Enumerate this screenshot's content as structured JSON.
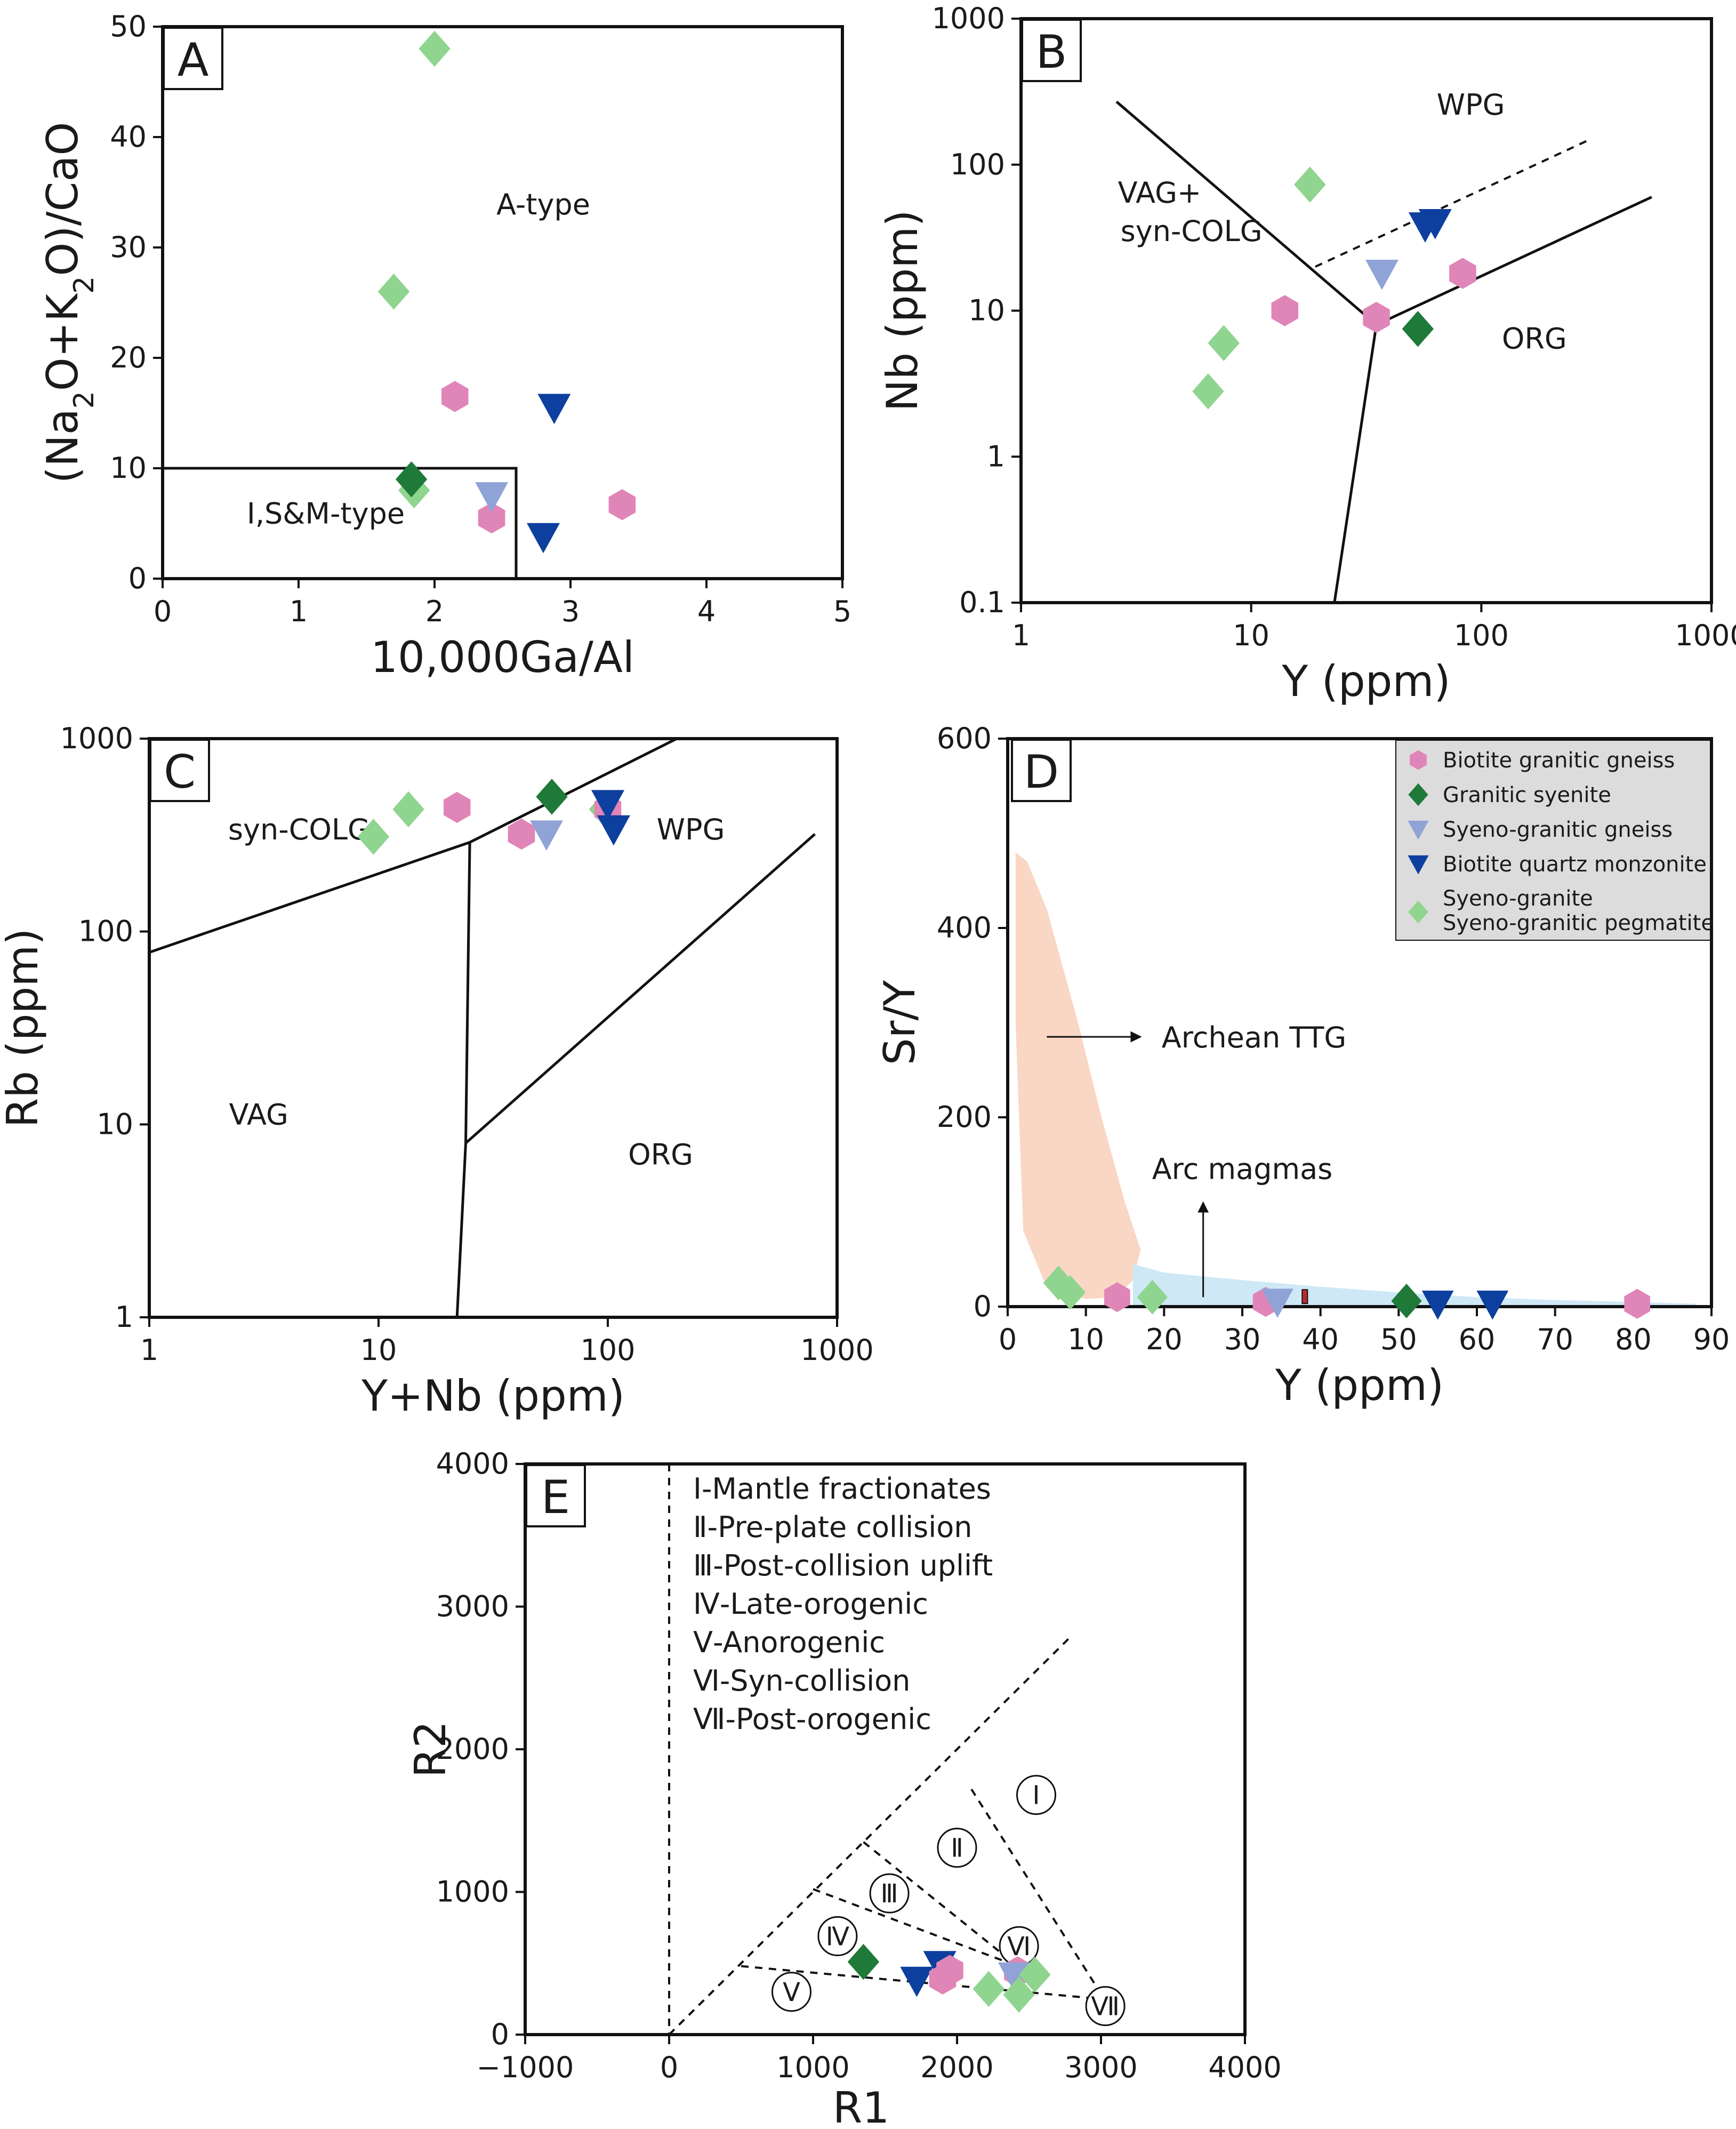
{
  "colors": {
    "biotite_granitic_gneiss": "#e085b8",
    "granitic_syenite": "#1f7a3a",
    "syeno_granitic_gneiss": "#8fa3d6",
    "biotite_quartz_monzonite": "#0d3f9e",
    "syeno_granite": "#8fd48f",
    "ttg_field": "#f9d7c4",
    "arc_field": "#cfe8f6",
    "legend_bg": "#dcdcdc"
  },
  "legend": {
    "items": [
      {
        "key": "biotite_granitic_gneiss",
        "marker": "hexagon",
        "label": "Biotite granitic gneiss"
      },
      {
        "key": "granitic_syenite",
        "marker": "diamond",
        "label": "Granitic syenite"
      },
      {
        "key": "syeno_granitic_gneiss",
        "marker": "triangle-down",
        "label": "Syeno-granitic gneiss"
      },
      {
        "key": "biotite_quartz_monzonite",
        "marker": "triangle-down",
        "label": "Biotite quartz monzonite"
      },
      {
        "key": "syeno_granite",
        "marker": "diamond",
        "label": "Syeno-granite",
        "label2": "Syeno-granitic pegmatite"
      }
    ]
  },
  "chart_data": [
    {
      "panel": "A",
      "type": "scatter",
      "xlabel": "10,000Ga/Al",
      "ylabel_parts": [
        "(Na",
        "2",
        "O+K",
        "2",
        "O)/CaO"
      ],
      "xlim": [
        0,
        5
      ],
      "ylim": [
        0,
        50
      ],
      "xticks": [
        0,
        1,
        2,
        3,
        4,
        5
      ],
      "yticks": [
        0,
        10,
        20,
        30,
        40,
        50
      ],
      "regions": [
        {
          "label": "A-type",
          "x": 2.8,
          "y": 33
        },
        {
          "label": "I,S&M-type",
          "x": 1.2,
          "y": 5
        }
      ],
      "boundaries": [
        [
          [
            0,
            10
          ],
          [
            2.6,
            10
          ],
          [
            2.6,
            0
          ]
        ]
      ],
      "points": [
        {
          "series": "syeno_granite",
          "x": 2.0,
          "y": 48
        },
        {
          "series": "syeno_granite",
          "x": 1.7,
          "y": 26
        },
        {
          "series": "syeno_granite",
          "x": 1.85,
          "y": 8
        },
        {
          "series": "biotite_granitic_gneiss",
          "x": 2.15,
          "y": 16.5
        },
        {
          "series": "biotite_granitic_gneiss",
          "x": 2.42,
          "y": 5.5
        },
        {
          "series": "biotite_granitic_gneiss",
          "x": 3.38,
          "y": 6.7
        },
        {
          "series": "biotite_quartz_monzonite",
          "x": 2.88,
          "y": 15.5
        },
        {
          "series": "biotite_quartz_monzonite",
          "x": 2.8,
          "y": 3.8
        },
        {
          "series": "granitic_syenite",
          "x": 1.83,
          "y": 9
        },
        {
          "series": "syeno_granitic_gneiss",
          "x": 2.42,
          "y": 7.5
        }
      ]
    },
    {
      "panel": "B",
      "type": "scatter",
      "xscale": "log",
      "yscale": "log",
      "xlabel": "Y (ppm)",
      "ylabel": "Nb (ppm)",
      "xlim": [
        1,
        1000
      ],
      "ylim": [
        0.1,
        1000
      ],
      "xticks": [
        1,
        10,
        100,
        1000
      ],
      "yticks": [
        0.1,
        1,
        10,
        100,
        1000
      ],
      "regions": [
        {
          "label": "WPG",
          "x": 90,
          "y": 220
        },
        {
          "label": "VAG+",
          "x": 4,
          "y": 55
        },
        {
          "label": "syn-COLG",
          "x": 5.5,
          "y": 30
        },
        {
          "label": "ORG",
          "x": 170,
          "y": 5.5
        }
      ],
      "boundaries": [
        [
          [
            2.6,
            270
          ],
          [
            35,
            8
          ],
          [
            23,
            0.1
          ]
        ],
        [
          [
            35,
            8
          ],
          [
            550,
            60
          ]
        ]
      ],
      "dashed": [
        [
          [
            19,
            20
          ],
          [
            300,
            150
          ]
        ]
      ],
      "points": [
        {
          "series": "syeno_granite",
          "x": 18,
          "y": 73
        },
        {
          "series": "syeno_granite",
          "x": 7.6,
          "y": 6
        },
        {
          "series": "syeno_granite",
          "x": 6.5,
          "y": 2.8
        },
        {
          "series": "biotite_quartz_monzonite",
          "x": 57,
          "y": 38
        },
        {
          "series": "biotite_quartz_monzonite",
          "x": 63,
          "y": 40
        },
        {
          "series": "syeno_granitic_gneiss",
          "x": 37,
          "y": 18
        },
        {
          "series": "biotite_granitic_gneiss",
          "x": 14,
          "y": 10
        },
        {
          "series": "biotite_granitic_gneiss",
          "x": 35,
          "y": 9
        },
        {
          "series": "biotite_granitic_gneiss",
          "x": 83,
          "y": 18
        },
        {
          "series": "granitic_syenite",
          "x": 53,
          "y": 7.5
        }
      ]
    },
    {
      "panel": "C",
      "type": "scatter",
      "xscale": "log",
      "yscale": "log",
      "xlabel": "Y+Nb (ppm)",
      "ylabel": "Rb (ppm)",
      "xlim": [
        1,
        1000
      ],
      "ylim": [
        1,
        1000
      ],
      "xticks": [
        1,
        10,
        100,
        1000
      ],
      "yticks": [
        1,
        10,
        100,
        1000
      ],
      "regions": [
        {
          "label": "syn-COLG",
          "x": 4.5,
          "y": 300
        },
        {
          "label": "WPG",
          "x": 230,
          "y": 300
        },
        {
          "label": "VAG",
          "x": 3,
          "y": 10
        },
        {
          "label": "ORG",
          "x": 170,
          "y": 6.2
        }
      ],
      "boundaries": [
        [
          [
            1,
            78
          ],
          [
            25,
            290
          ],
          [
            200,
            1000
          ]
        ],
        [
          [
            25,
            290
          ],
          [
            24,
            8
          ],
          [
            22,
            1
          ]
        ],
        [
          [
            24,
            8
          ],
          [
            800,
            320
          ]
        ]
      ],
      "points": [
        {
          "series": "syeno_granite",
          "x": 9.5,
          "y": 310
        },
        {
          "series": "syeno_granite",
          "x": 13.5,
          "y": 430
        },
        {
          "series": "syeno_granite",
          "x": 97,
          "y": 430
        },
        {
          "series": "biotite_granitic_gneiss",
          "x": 22,
          "y": 440
        },
        {
          "series": "biotite_granitic_gneiss",
          "x": 42,
          "y": 320
        },
        {
          "series": "biotite_granitic_gneiss",
          "x": 100,
          "y": 430
        },
        {
          "series": "syeno_granitic_gneiss",
          "x": 54,
          "y": 320
        },
        {
          "series": "granitic_syenite",
          "x": 57,
          "y": 500
        },
        {
          "series": "biotite_quartz_monzonite",
          "x": 100,
          "y": 460
        },
        {
          "series": "biotite_quartz_monzonite",
          "x": 106,
          "y": 340
        }
      ]
    },
    {
      "panel": "D",
      "type": "scatter",
      "xlabel": "Y (ppm)",
      "ylabel": "Sr/Y",
      "xlim": [
        0,
        90
      ],
      "ylim": [
        0,
        600
      ],
      "xticks": [
        0,
        10,
        20,
        30,
        40,
        50,
        60,
        70,
        80,
        90
      ],
      "yticks": [
        0,
        200,
        400,
        600
      ],
      "fields": [
        {
          "name": "Archean TTG",
          "label": "Archean TTG",
          "color_key": "ttg_field",
          "polygon": [
            [
              1,
              480
            ],
            [
              2.5,
              470
            ],
            [
              5,
              420
            ],
            [
              9,
              300
            ],
            [
              12,
              200
            ],
            [
              15,
              110
            ],
            [
              17,
              60
            ],
            [
              16,
              28
            ],
            [
              14,
              10
            ],
            [
              10,
              8
            ],
            [
              5,
              20
            ],
            [
              2,
              80
            ],
            [
              1,
              300
            ]
          ]
        },
        {
          "name": "Arc magmas",
          "label": "Arc magmas",
          "color_key": "arc_field",
          "polygon": [
            [
              16,
              45
            ],
            [
              20,
              36
            ],
            [
              30,
              28
            ],
            [
              40,
              21
            ],
            [
              50,
              15
            ],
            [
              60,
              10
            ],
            [
              70,
              7
            ],
            [
              80,
              5
            ],
            [
              88,
              3
            ],
            [
              88,
              0
            ],
            [
              16,
              0
            ]
          ]
        }
      ],
      "arrows": [
        {
          "from": [
            5,
            285
          ],
          "to": [
            17,
            285
          ]
        },
        {
          "from": [
            25,
            10
          ],
          "to": [
            25,
            110
          ]
        }
      ],
      "points": [
        {
          "series": "syeno_granite",
          "x": 6.5,
          "y": 25
        },
        {
          "series": "syeno_granite",
          "x": 8,
          "y": 15
        },
        {
          "series": "syeno_granite",
          "x": 18.5,
          "y": 10
        },
        {
          "series": "biotite_granitic_gneiss",
          "x": 14,
          "y": 10
        },
        {
          "series": "biotite_granitic_gneiss",
          "x": 33,
          "y": 5
        },
        {
          "series": "biotite_granitic_gneiss",
          "x": 80.5,
          "y": 3
        },
        {
          "series": "syeno_granitic_gneiss",
          "x": 34.5,
          "y": 5
        },
        {
          "series": "granitic_syenite",
          "x": 51,
          "y": 6
        },
        {
          "series": "biotite_quartz_monzonite",
          "x": 55,
          "y": 3
        },
        {
          "series": "biotite_quartz_monzonite",
          "x": 62,
          "y": 3
        }
      ],
      "red_tick": {
        "x": 38,
        "y": 10
      }
    },
    {
      "panel": "E",
      "type": "scatter",
      "xlabel": "R1",
      "ylabel": "R2",
      "xlim": [
        -1000,
        4000
      ],
      "ylim": [
        0,
        4000
      ],
      "xticks": [
        -1000,
        0,
        1000,
        2000,
        3000,
        4000
      ],
      "xtick_labels": [
        "−1000",
        "0",
        "1000",
        "2000",
        "3000",
        "4000"
      ],
      "yticks": [
        0,
        1000,
        2000,
        3000,
        4000
      ],
      "notes": [
        {
          "numeral": "Ⅰ",
          "text": "-Mantle fractionates"
        },
        {
          "numeral": "Ⅱ",
          "text": "-Pre-plate collision"
        },
        {
          "numeral": "Ⅲ",
          "text": "-Post-collision uplift"
        },
        {
          "numeral": "Ⅳ",
          "text": "-Late-orogenic"
        },
        {
          "numeral": "Ⅴ",
          "text": "-Anorogenic"
        },
        {
          "numeral": "Ⅵ",
          "text": "-Syn-collision"
        },
        {
          "numeral": "Ⅶ",
          "text": "-Post-orogenic"
        }
      ],
      "region_markers": [
        {
          "numeral": "Ⅰ",
          "x": 2550,
          "y": 1680
        },
        {
          "numeral": "Ⅱ",
          "x": 2000,
          "y": 1310
        },
        {
          "numeral": "Ⅲ",
          "x": 1530,
          "y": 990
        },
        {
          "numeral": "Ⅳ",
          "x": 1170,
          "y": 690
        },
        {
          "numeral": "Ⅴ",
          "x": 850,
          "y": 300
        },
        {
          "numeral": "Ⅵ",
          "x": 2430,
          "y": 620
        },
        {
          "numeral": "Ⅶ",
          "x": 3030,
          "y": 200
        }
      ],
      "dashed": [
        [
          [
            0,
            4000
          ],
          [
            0,
            0
          ]
        ],
        [
          [
            0,
            0
          ],
          [
            2800,
            2800
          ]
        ],
        [
          [
            2100,
            1720
          ],
          [
            2960,
            350
          ]
        ],
        [
          [
            1350,
            1350
          ],
          [
            2420,
            480
          ]
        ],
        [
          [
            1000,
            1020
          ],
          [
            2420,
            480
          ]
        ],
        [
          [
            500,
            480
          ],
          [
            3000,
            250
          ]
        ]
      ],
      "points": [
        {
          "series": "granitic_syenite",
          "x": 1350,
          "y": 510
        },
        {
          "series": "biotite_quartz_monzonite",
          "x": 1720,
          "y": 380
        },
        {
          "series": "biotite_quartz_monzonite",
          "x": 1880,
          "y": 490
        },
        {
          "series": "biotite_granitic_gneiss",
          "x": 1950,
          "y": 450
        },
        {
          "series": "biotite_granitic_gneiss",
          "x": 1900,
          "y": 390
        },
        {
          "series": "biotite_granitic_gneiss",
          "x": 2420,
          "y": 440
        },
        {
          "series": "syeno_granitic_gneiss",
          "x": 2400,
          "y": 410
        },
        {
          "series": "syeno_granite",
          "x": 2220,
          "y": 320
        },
        {
          "series": "syeno_granite",
          "x": 2430,
          "y": 280
        },
        {
          "series": "syeno_granite",
          "x": 2540,
          "y": 420
        }
      ]
    }
  ]
}
